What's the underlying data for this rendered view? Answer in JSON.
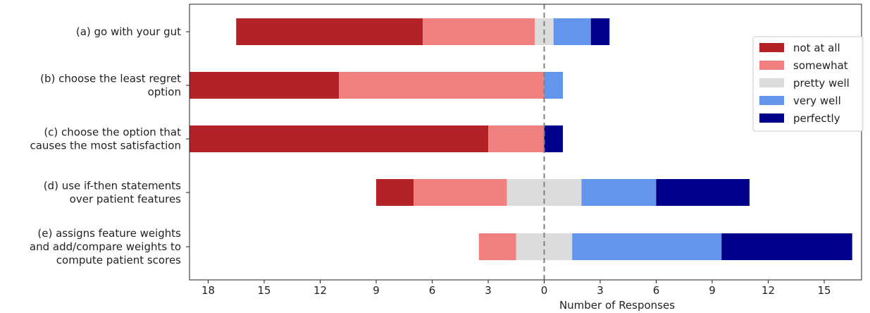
{
  "chart_data": {
    "type": "bar",
    "orientation": "horizontal-diverging",
    "xlabel": "Number of Responses",
    "xlim": [
      -19,
      17
    ],
    "xticks": [
      -18,
      -15,
      -12,
      -9,
      -6,
      -3,
      0,
      3,
      6,
      9,
      12,
      15
    ],
    "xtick_labels": [
      "18",
      "15",
      "12",
      "9",
      "6",
      "3",
      "0",
      "3",
      "6",
      "9",
      "12",
      "15"
    ],
    "center_line": 0,
    "legend_position": "right",
    "categories": [
      [
        "(a) go with your gut"
      ],
      [
        "(b) choose the least regret",
        "option"
      ],
      [
        "(c) choose the option that",
        "causes the most satisfaction"
      ],
      [
        "(d) use if-then statements",
        "over patient features"
      ],
      [
        "(e) assigns feature weights",
        "and add/compare weights to",
        "compute patient scores"
      ]
    ],
    "series": [
      {
        "name": "not at all",
        "color": "#b22226",
        "values": [
          10,
          8,
          16,
          2,
          0
        ]
      },
      {
        "name": "somewhat",
        "color": "#f08080",
        "values": [
          6,
          11,
          3,
          5,
          2
        ]
      },
      {
        "name": "pretty well",
        "color": "#dcdcdc",
        "values": [
          1,
          0,
          0,
          4,
          3
        ]
      },
      {
        "name": "very well",
        "color": "#6495ed",
        "values": [
          2,
          1,
          0,
          4,
          8
        ]
      },
      {
        "name": "perfectly",
        "color": "#00008b",
        "values": [
          1,
          0,
          1,
          5,
          7
        ]
      }
    ]
  }
}
